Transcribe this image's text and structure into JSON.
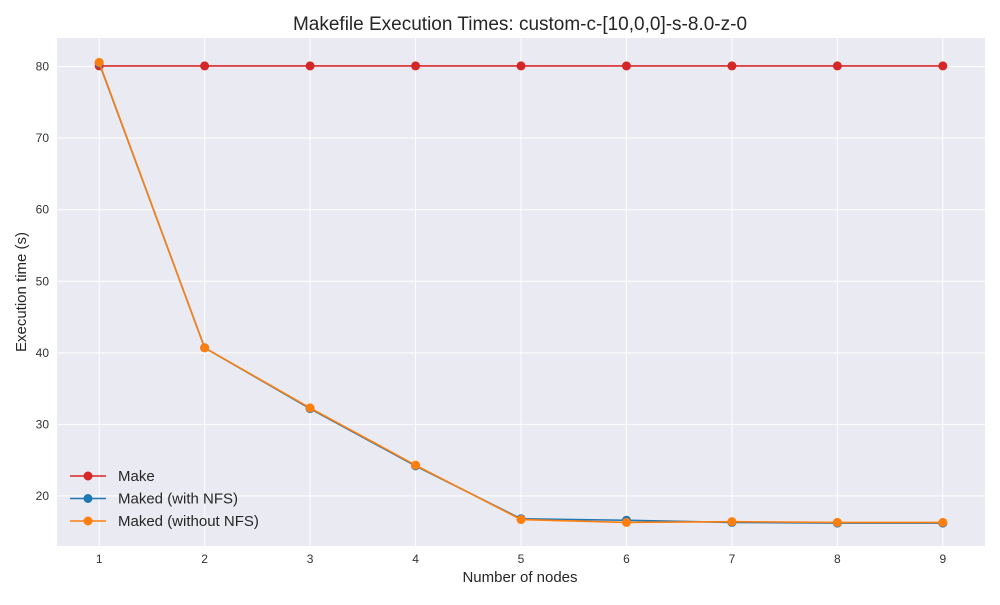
{
  "chart_data": {
    "type": "line",
    "title": "Makefile Execution Times: custom-c-[10,0,0]-s-8.0-z-0",
    "xlabel": "Number of nodes",
    "ylabel": "Execution time (s)",
    "x": [
      1,
      2,
      3,
      4,
      5,
      6,
      7,
      8,
      9
    ],
    "xlim": [
      0.6,
      9.4
    ],
    "ylim": [
      13,
      84
    ],
    "xticks": [
      1,
      2,
      3,
      4,
      5,
      6,
      7,
      8,
      9
    ],
    "yticks": [
      20,
      30,
      40,
      50,
      60,
      70,
      80
    ],
    "grid": true,
    "legend_position": "lower-left",
    "background_color": "#EAEAF2",
    "series": [
      {
        "name": "Make",
        "color": "#D62728",
        "values": [
          80.1,
          80.1,
          80.1,
          80.1,
          80.1,
          80.1,
          80.1,
          80.1,
          80.1
        ]
      },
      {
        "name": "Maked (with NFS)",
        "color": "#1F77B4",
        "values": [
          80.5,
          40.7,
          32.2,
          24.2,
          16.8,
          16.6,
          16.3,
          16.2,
          16.2
        ]
      },
      {
        "name": "Maked (without NFS)",
        "color": "#FF7F0E",
        "values": [
          80.6,
          40.7,
          32.3,
          24.3,
          16.7,
          16.3,
          16.4,
          16.3,
          16.3
        ]
      }
    ]
  }
}
